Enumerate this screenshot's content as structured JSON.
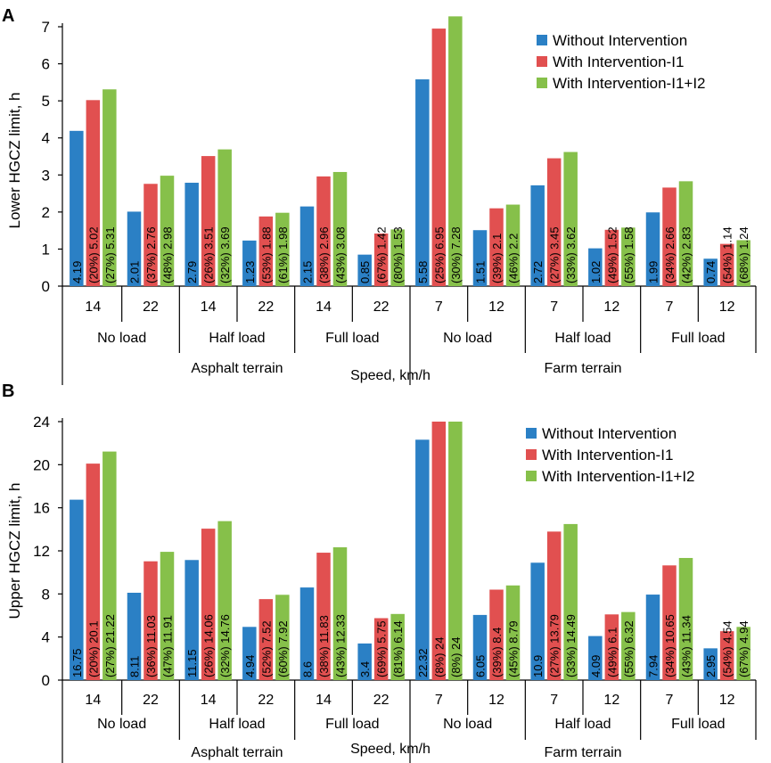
{
  "colors": {
    "without": "#2b80c5",
    "i1": "#e15050",
    "i1i2": "#86c04a",
    "axis": "#000000"
  },
  "legend": [
    "Without Intervention",
    "With Intervention-I1",
    "With Intervention-I1+I2"
  ],
  "xaxis_title": "Speed, km/h",
  "chart_data": [
    {
      "panel": "A",
      "type": "bar",
      "ylabel": "Lower HGCZ limit, h",
      "ylim": [
        0,
        7
      ],
      "yticks": [
        0,
        1,
        2,
        3,
        4,
        5,
        6,
        7
      ],
      "categories": [
        "14",
        "22",
        "14",
        "22",
        "14",
        "22",
        "7",
        "12",
        "7",
        "12",
        "7",
        "12"
      ],
      "load_groups": [
        "No load",
        "Half load",
        "Full load",
        "No load",
        "Half load",
        "Full load"
      ],
      "terrain_groups": [
        "Asphalt terrain",
        "Farm terrain"
      ],
      "series": [
        {
          "name": "Without Intervention",
          "values": [
            4.19,
            2.01,
            2.79,
            1.23,
            2.15,
            0.85,
            5.58,
            1.51,
            2.72,
            1.02,
            1.99,
            0.74
          ],
          "labels": [
            "4.19",
            "2.01",
            "2.79",
            "1.23",
            "2.15",
            "0.85",
            "5.58",
            "1.51",
            "2.72",
            "1.02",
            "1.99",
            "0.74"
          ]
        },
        {
          "name": "With Intervention-I1",
          "values": [
            5.02,
            2.76,
            3.51,
            1.88,
            2.96,
            1.42,
            6.95,
            2.1,
            3.45,
            1.52,
            2.66,
            1.14
          ],
          "labels": [
            "(20%) 5.02",
            "(37%) 2.76",
            "(26%) 3.51",
            "(53%) 1.88",
            "(38%) 2.96",
            "(67%) 1.42",
            "(25%) 6.95",
            "(39%) 2.1",
            "(27%) 3.45",
            "(49%) 1.52",
            "(34%) 2.66",
            "(54%) 1.14"
          ]
        },
        {
          "name": "With Intervention-I1+I2",
          "values": [
            5.31,
            2.98,
            3.69,
            1.98,
            3.08,
            1.53,
            7.28,
            2.2,
            3.62,
            1.58,
            2.83,
            1.24
          ],
          "labels": [
            "(27%) 5.31",
            "(48%) 2.98",
            "(32%) 3.69",
            "(61%) 1.98",
            "(43%) 3.08",
            "(80%) 1.53",
            "(30%) 7.28",
            "(46%) 2.2",
            "(33%) 3.62",
            "(55%) 1.58",
            "(42%) 2.83",
            "(68%) 1.24"
          ]
        }
      ]
    },
    {
      "panel": "B",
      "type": "bar",
      "ylabel": "Upper HGCZ limit, h",
      "ylim": [
        0,
        24
      ],
      "yticks": [
        0,
        4,
        8,
        12,
        16,
        20,
        24
      ],
      "categories": [
        "14",
        "22",
        "14",
        "22",
        "14",
        "22",
        "7",
        "12",
        "7",
        "12",
        "7",
        "12"
      ],
      "load_groups": [
        "No load",
        "Half load",
        "Full load",
        "No load",
        "Half load",
        "Full load"
      ],
      "terrain_groups": [
        "Asphalt terrain",
        "Farm terrain"
      ],
      "series": [
        {
          "name": "Without Intervention",
          "values": [
            16.75,
            8.11,
            11.15,
            4.94,
            8.6,
            3.4,
            22.32,
            6.05,
            10.9,
            4.09,
            7.94,
            2.95
          ],
          "labels": [
            "16.75",
            "8.11",
            "11.15",
            "4.94",
            "8.6",
            "3.4",
            "22.32",
            "6.05",
            "10.9",
            "4.09",
            "7.94",
            "2.95"
          ]
        },
        {
          "name": "With Intervention-I1",
          "values": [
            20.1,
            11.03,
            14.06,
            7.52,
            11.83,
            5.75,
            24,
            8.4,
            13.79,
            6.1,
            10.65,
            4.54
          ],
          "labels": [
            "(20%) 20.1",
            "(36%) 11.03",
            "(26%) 14.06",
            "(52%) 7.52",
            "(38%) 11.83",
            "(69%) 5.75",
            "(8%) 24",
            "(39%) 8.4",
            "(27%) 13.79",
            "(49%) 6.1",
            "(34%) 10.65",
            "(54%) 4.54"
          ]
        },
        {
          "name": "With Intervention-I1+I2",
          "values": [
            21.22,
            11.91,
            14.76,
            7.92,
            12.33,
            6.14,
            24,
            8.79,
            14.49,
            6.32,
            11.34,
            4.94
          ],
          "labels": [
            "(27%) 21.22",
            "(47%) 11.91",
            "(32%) 14.76",
            "(60%) 7.92",
            "(43%) 12.33",
            "(81%) 6.14",
            "(8%) 24",
            "(45%) 8.79",
            "(33%) 14.49",
            "(55%) 6.32",
            "(43%) 11.34",
            "(67%) 4.94"
          ]
        }
      ]
    }
  ]
}
